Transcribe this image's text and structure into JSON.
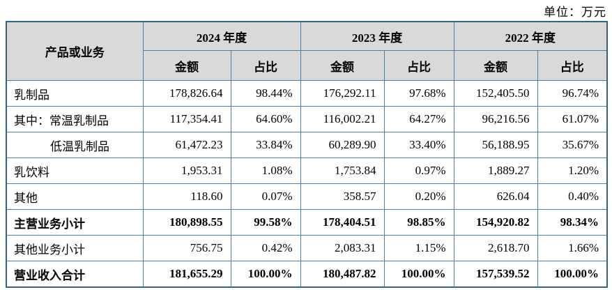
{
  "unit_label": "单位：万元",
  "table": {
    "col_header": "产品或业务",
    "year_groups": [
      {
        "year": "2024 年度",
        "amount_label": "金额",
        "ratio_label": "占比"
      },
      {
        "year": "2023 年度",
        "amount_label": "金额",
        "ratio_label": "占比"
      },
      {
        "year": "2022 年度",
        "amount_label": "金额",
        "ratio_label": "占比"
      }
    ],
    "rows": [
      {
        "label": "乳制品",
        "indent": false,
        "bold": false,
        "values": [
          "178,826.64",
          "98.44%",
          "176,292.11",
          "97.68%",
          "152,405.50",
          "96.74%"
        ]
      },
      {
        "label": "其中：常温乳制品",
        "indent": false,
        "bold": false,
        "values": [
          "117,354.41",
          "64.60%",
          "116,002.21",
          "64.27%",
          "96,216.56",
          "61.07%"
        ]
      },
      {
        "label": "低温乳制品",
        "indent": true,
        "bold": false,
        "values": [
          "61,472.23",
          "33.84%",
          "60,289.90",
          "33.40%",
          "56,188.95",
          "35.67%"
        ]
      },
      {
        "label": "乳饮料",
        "indent": false,
        "bold": false,
        "values": [
          "1,953.31",
          "1.08%",
          "1,753.84",
          "0.97%",
          "1,889.27",
          "1.20%"
        ]
      },
      {
        "label": "其他",
        "indent": false,
        "bold": false,
        "values": [
          "118.60",
          "0.07%",
          "358.57",
          "0.20%",
          "626.04",
          "0.40%"
        ]
      },
      {
        "label": "主营业务小计",
        "indent": false,
        "bold": true,
        "values": [
          "180,898.55",
          "99.58%",
          "178,404.51",
          "98.85%",
          "154,920.82",
          "98.34%"
        ]
      },
      {
        "label": "其他业务小计",
        "indent": false,
        "bold": false,
        "values": [
          "756.75",
          "0.42%",
          "2,083.31",
          "1.15%",
          "2,618.70",
          "1.66%"
        ]
      },
      {
        "label": "营业收入合计",
        "indent": false,
        "bold": true,
        "values": [
          "181,655.29",
          "100.00%",
          "180,487.82",
          "100.00%",
          "157,539.52",
          "100.00%"
        ]
      }
    ]
  }
}
